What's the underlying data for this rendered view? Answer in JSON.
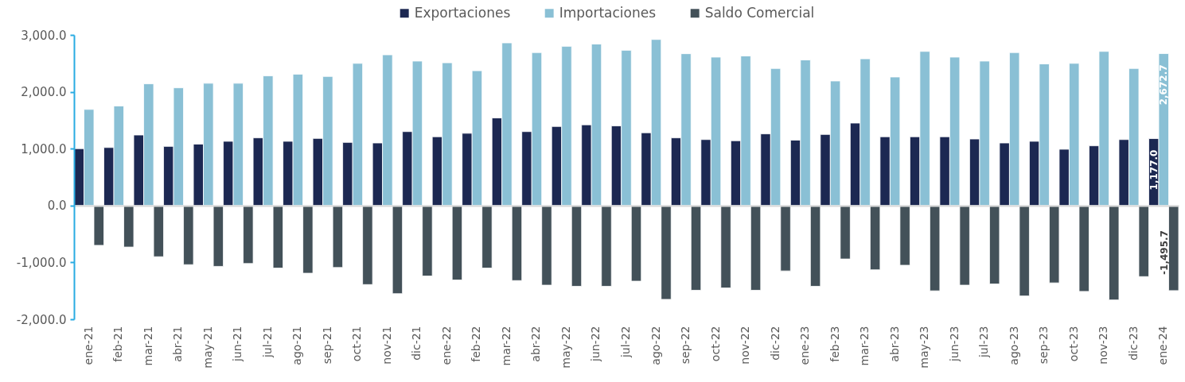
{
  "chart_data": {
    "type": "bar",
    "categories": [
      "ene-21",
      "feb-21",
      "mar-21",
      "abr-21",
      "may-21",
      "jun-21",
      "jul-21",
      "ago-21",
      "sep-21",
      "oct-21",
      "nov-21",
      "dic-21",
      "ene-22",
      "feb-22",
      "mar-22",
      "abr-22",
      "may-22",
      "jun-22",
      "jul-22",
      "ago-22",
      "sep-22",
      "oct-22",
      "nov-22",
      "dic-22",
      "ene-23",
      "feb-23",
      "mar-23",
      "abr-23",
      "may-23",
      "jun-23",
      "jul-23",
      "ago-23",
      "sep-23",
      "oct-23",
      "nov-23",
      "dic-23",
      "ene-24"
    ],
    "series": [
      {
        "name": "Exportaciones",
        "color": "#1c2852",
        "values": [
          1000,
          1020,
          1240,
          1040,
          1080,
          1130,
          1190,
          1130,
          1180,
          1110,
          1100,
          1300,
          1210,
          1270,
          1540,
          1300,
          1390,
          1420,
          1400,
          1280,
          1190,
          1160,
          1140,
          1260,
          1150,
          1250,
          1450,
          1210,
          1210,
          1210,
          1170,
          1100,
          1130,
          990,
          1050,
          1160,
          1177.0
        ],
        "value_labels": [
          null,
          null,
          null,
          null,
          null,
          null,
          null,
          null,
          null,
          null,
          null,
          null,
          null,
          null,
          null,
          null,
          null,
          null,
          null,
          null,
          null,
          null,
          null,
          null,
          null,
          null,
          null,
          null,
          null,
          null,
          null,
          null,
          null,
          null,
          null,
          null,
          "1,177.0"
        ]
      },
      {
        "name": "Importaciones",
        "color": "#8ac0d5",
        "values": [
          1690,
          1750,
          2140,
          2070,
          2150,
          2150,
          2280,
          2310,
          2270,
          2500,
          2650,
          2540,
          2510,
          2370,
          2860,
          2690,
          2800,
          2840,
          2730,
          2920,
          2670,
          2610,
          2630,
          2410,
          2560,
          2190,
          2580,
          2260,
          2710,
          2610,
          2540,
          2690,
          2490,
          2500,
          2710,
          2410,
          2672.7
        ],
        "value_labels": [
          null,
          null,
          null,
          null,
          null,
          null,
          null,
          null,
          null,
          null,
          null,
          null,
          null,
          null,
          null,
          null,
          null,
          null,
          null,
          null,
          null,
          null,
          null,
          null,
          null,
          null,
          null,
          null,
          null,
          null,
          null,
          null,
          null,
          null,
          null,
          null,
          "2,672.7"
        ]
      },
      {
        "name": "Saldo Comercial",
        "color": "#435159",
        "values": [
          -700,
          -730,
          -900,
          -1040,
          -1070,
          -1020,
          -1100,
          -1190,
          -1090,
          -1390,
          -1550,
          -1240,
          -1310,
          -1100,
          -1320,
          -1400,
          -1420,
          -1420,
          -1330,
          -1650,
          -1490,
          -1450,
          -1490,
          -1150,
          -1420,
          -940,
          -1130,
          -1050,
          -1500,
          -1400,
          -1380,
          -1590,
          -1360,
          -1510,
          -1660,
          -1250,
          -1495.7
        ],
        "value_labels": [
          null,
          null,
          null,
          null,
          null,
          null,
          null,
          null,
          null,
          null,
          null,
          null,
          null,
          null,
          null,
          null,
          null,
          null,
          null,
          null,
          null,
          null,
          null,
          null,
          null,
          null,
          null,
          null,
          null,
          null,
          null,
          null,
          null,
          null,
          null,
          null,
          "-1,495.7"
        ]
      }
    ],
    "ylim": [
      -2000,
      3000
    ],
    "yticks": [
      {
        "value": -2000,
        "label": "-2,000.0"
      },
      {
        "value": -1000,
        "label": "-1,000.0"
      },
      {
        "value": 0,
        "label": "0.0"
      },
      {
        "value": 1000,
        "label": "1,000.0"
      },
      {
        "value": 2000,
        "label": "2,000.0"
      },
      {
        "value": 3000,
        "label": "3,000.0"
      }
    ],
    "legend": "top"
  }
}
